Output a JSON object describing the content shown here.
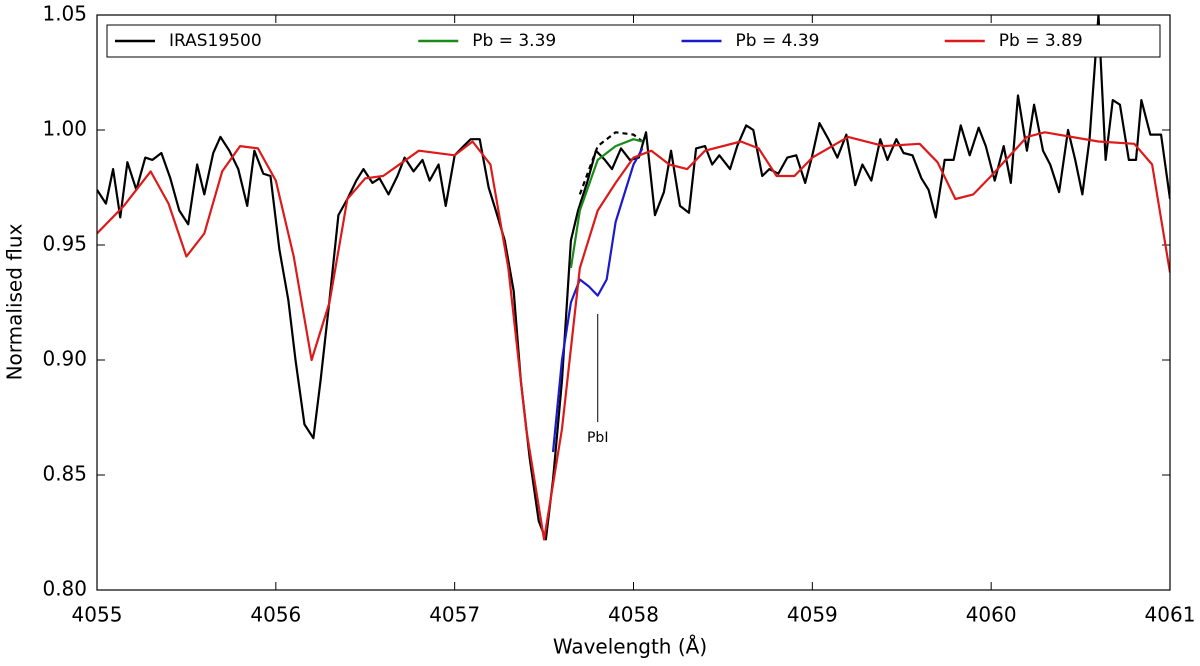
{
  "chart_data": {
    "type": "line",
    "xlabel": "Wavelength (Å)",
    "ylabel": "Normalised flux",
    "xlim": [
      4055,
      4061
    ],
    "ylim": [
      0.8,
      1.05
    ],
    "xticks": [
      4055,
      4056,
      4057,
      4058,
      4059,
      4060,
      4061
    ],
    "yticks": [
      {
        "value": 0.8,
        "label": "0.80"
      },
      0.85,
      {
        "value": 0.9,
        "label": "0.90"
      },
      0.95,
      {
        "value": 1.0,
        "label": "1.00"
      },
      1.05
    ],
    "legend": "top",
    "series": [
      {
        "name": "IRAS19500",
        "color": "#000000",
        "dash": false,
        "x": [
          4055.0,
          4055.05,
          4055.09,
          4055.13,
          4055.17,
          4055.22,
          4055.27,
          4055.31,
          4055.36,
          4055.41,
          4055.46,
          4055.51,
          4055.56,
          4055.6,
          4055.65,
          4055.69,
          4055.74,
          4055.79,
          4055.84,
          4055.88,
          4055.93,
          4055.97,
          4056.02,
          4056.07,
          4056.11,
          4056.16,
          4056.21,
          4056.25,
          4056.3,
          4056.35,
          4056.4,
          4056.45,
          4056.49,
          4056.54,
          4056.58,
          4056.63,
          4056.68,
          4056.72,
          4056.77,
          4056.82,
          4056.86,
          4056.91,
          4056.95,
          4057.0,
          4057.05,
          4057.09,
          4057.14,
          4057.19,
          4057.23,
          4057.28,
          4057.33,
          4057.37,
          4057.42,
          4057.47,
          4057.51,
          4057.55,
          4057.6,
          4057.65,
          4057.69,
          4057.74,
          4057.79,
          4057.84,
          4057.88,
          4057.93,
          4057.98,
          4058.03,
          4058.07,
          4058.12,
          4058.17,
          4058.21,
          4058.26,
          4058.31,
          4058.35,
          4058.4,
          4058.44,
          4058.48,
          4058.54,
          4058.58,
          4058.63,
          4058.67,
          4058.72,
          4058.76,
          4058.81,
          4058.86,
          4058.91,
          4058.96,
          4059.0,
          4059.04,
          4059.09,
          4059.14,
          4059.19,
          4059.24,
          4059.28,
          4059.33,
          4059.38,
          4059.42,
          4059.47,
          4059.51,
          4059.56,
          4059.61,
          4059.65,
          4059.69,
          4059.74,
          4059.79,
          4059.83,
          4059.88,
          4059.93,
          4059.97,
          4060.02,
          4060.07,
          4060.11,
          4060.15,
          4060.2,
          4060.24,
          4060.29,
          4060.33,
          4060.38,
          4060.43,
          4060.47,
          4060.51,
          4060.55,
          4060.6,
          4060.64,
          4060.68,
          4060.72,
          4060.77,
          4060.81,
          4060.84,
          4060.89,
          4060.95,
          4061.0
        ],
        "values": [
          0.974,
          0.968,
          0.983,
          0.962,
          0.986,
          0.974,
          0.988,
          0.987,
          0.99,
          0.979,
          0.965,
          0.959,
          0.985,
          0.972,
          0.99,
          0.997,
          0.991,
          0.983,
          0.967,
          0.991,
          0.981,
          0.98,
          0.948,
          0.926,
          0.9,
          0.872,
          0.866,
          0.891,
          0.926,
          0.963,
          0.97,
          0.978,
          0.983,
          0.977,
          0.979,
          0.972,
          0.98,
          0.988,
          0.982,
          0.987,
          0.978,
          0.985,
          0.967,
          0.989,
          0.993,
          0.996,
          0.996,
          0.975,
          0.965,
          0.952,
          0.93,
          0.891,
          0.857,
          0.83,
          0.822,
          0.848,
          0.891,
          0.952,
          0.965,
          0.977,
          0.991,
          0.987,
          0.983,
          0.992,
          0.987,
          0.988,
          0.999,
          0.963,
          0.973,
          0.991,
          0.967,
          0.964,
          0.992,
          0.993,
          0.985,
          0.989,
          0.983,
          0.993,
          1.002,
          1.0,
          0.98,
          0.983,
          0.981,
          0.988,
          0.989,
          0.977,
          0.989,
          1.003,
          0.996,
          0.988,
          0.998,
          0.976,
          0.985,
          0.978,
          0.996,
          0.987,
          0.996,
          0.99,
          0.989,
          0.979,
          0.974,
          0.962,
          0.987,
          0.987,
          1.002,
          0.989,
          1.001,
          0.993,
          0.978,
          0.993,
          0.977,
          1.015,
          0.991,
          1.011,
          0.991,
          0.985,
          0.973,
          1.0,
          0.987,
          0.972,
          0.996,
          1.05,
          0.987,
          1.013,
          1.011,
          0.987,
          0.987,
          1.013,
          0.998,
          0.998,
          0.97
        ]
      },
      {
        "color": "#000000",
        "dash": true,
        "x": [
          4057.7,
          4057.8,
          4057.9,
          4058.0,
          4058.05
        ],
        "values": [
          0.972,
          0.993,
          0.999,
          0.998,
          0.995
        ]
      },
      {
        "name": "Pb = 3.39",
        "color": "#1a8a1a",
        "dash": false,
        "x": [
          4057.65,
          4057.7,
          4057.8,
          4057.9,
          4058.0,
          4058.05
        ],
        "values": [
          0.94,
          0.965,
          0.987,
          0.993,
          0.996,
          0.995
        ]
      },
      {
        "name": "Pb = 4.39",
        "color": "#1a1acc",
        "dash": false,
        "x": [
          4057.55,
          4057.6,
          4057.65,
          4057.7,
          4057.75,
          4057.8,
          4057.85,
          4057.9,
          4058.0,
          4058.05
        ],
        "values": [
          0.86,
          0.9,
          0.925,
          0.935,
          0.932,
          0.928,
          0.935,
          0.96,
          0.985,
          0.992
        ]
      },
      {
        "name": "Pb = 3.89",
        "color": "#dd1a1a",
        "dash": false,
        "x": [
          4055.0,
          4055.15,
          4055.3,
          4055.4,
          4055.5,
          4055.6,
          4055.7,
          4055.8,
          4055.9,
          4056.0,
          4056.1,
          4056.2,
          4056.3,
          4056.4,
          4056.5,
          4056.6,
          4056.8,
          4057.0,
          4057.1,
          4057.2,
          4057.3,
          4057.4,
          4057.5,
          4057.6,
          4057.7,
          4057.8,
          4057.9,
          4058.0,
          4058.1,
          4058.2,
          4058.3,
          4058.4,
          4058.6,
          4058.7,
          4058.8,
          4058.9,
          4059.0,
          4059.2,
          4059.4,
          4059.6,
          4059.7,
          4059.8,
          4059.9,
          4060.0,
          4060.2,
          4060.3,
          4060.6,
          4060.8,
          4060.9,
          4061.0
        ],
        "values": [
          0.955,
          0.967,
          0.982,
          0.968,
          0.945,
          0.955,
          0.982,
          0.993,
          0.992,
          0.978,
          0.945,
          0.9,
          0.925,
          0.97,
          0.979,
          0.98,
          0.991,
          0.989,
          0.995,
          0.985,
          0.94,
          0.87,
          0.822,
          0.87,
          0.94,
          0.965,
          0.977,
          0.988,
          0.991,
          0.985,
          0.983,
          0.991,
          0.995,
          0.992,
          0.98,
          0.98,
          0.988,
          0.997,
          0.993,
          0.994,
          0.986,
          0.97,
          0.972,
          0.98,
          0.997,
          0.999,
          0.995,
          0.994,
          0.985,
          0.938
        ]
      }
    ],
    "annotations": [
      {
        "text": "PbI",
        "x": 4057.8,
        "y": 0.92,
        "y_end": 0.873
      }
    ]
  }
}
